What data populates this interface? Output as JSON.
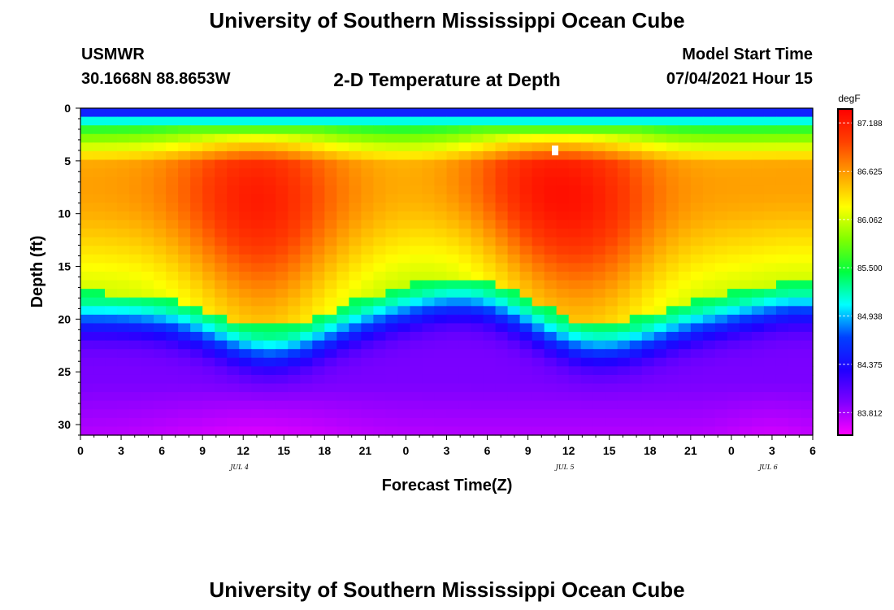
{
  "header": {
    "title": "University of Southern Mississippi Ocean Cube",
    "footer_title": "University of Southern Mississippi Ocean Cube",
    "station": "USMWR",
    "coords": "30.1668N  88.8653W",
    "plot_title": "2-D Temperature at Depth",
    "model_start_label": "Model Start Time",
    "model_start_value": "07/04/2021 Hour 15"
  },
  "chart_data": {
    "type": "heatmap",
    "title": "2-D Temperature at Depth",
    "xlabel": "Forecast Time(Z)",
    "ylabel": "Depth (ft)",
    "x_tick_labels": [
      "0",
      "3",
      "6",
      "9",
      "12",
      "15",
      "18",
      "21",
      "0",
      "3",
      "6",
      "9",
      "12",
      "15",
      "18",
      "21",
      "0",
      "3",
      "6"
    ],
    "xlim_hours": [
      0,
      54
    ],
    "y_ticks": [
      0,
      5,
      10,
      15,
      20,
      25,
      30
    ],
    "ylim_ft": [
      0,
      31
    ],
    "date_labels": [
      {
        "label": "JUL 4",
        "hour": 12
      },
      {
        "label": "JUL 5",
        "hour": 36
      },
      {
        "label": "JUL 6",
        "hour": 51
      }
    ],
    "colorbar": {
      "unit": "degF",
      "ticks": [
        87.188,
        86.625,
        86.062,
        85.5,
        84.938,
        84.375,
        83.812
      ],
      "tick_labels": [
        "87.188",
        "86.625",
        "86.062",
        "85.500",
        "84.938",
        "84.375",
        "83.812"
      ],
      "min": 83.55,
      "max": 87.35,
      "colors": [
        "#ff00ff",
        "#8000ff",
        "#2000ff",
        "#0040ff",
        "#00ffff",
        "#00ff40",
        "#80ff00",
        "#ffff00",
        "#ffa000",
        "#ff4000",
        "#ff0000"
      ]
    },
    "marker": {
      "hour": 35,
      "depth_ft": 4
    }
  }
}
